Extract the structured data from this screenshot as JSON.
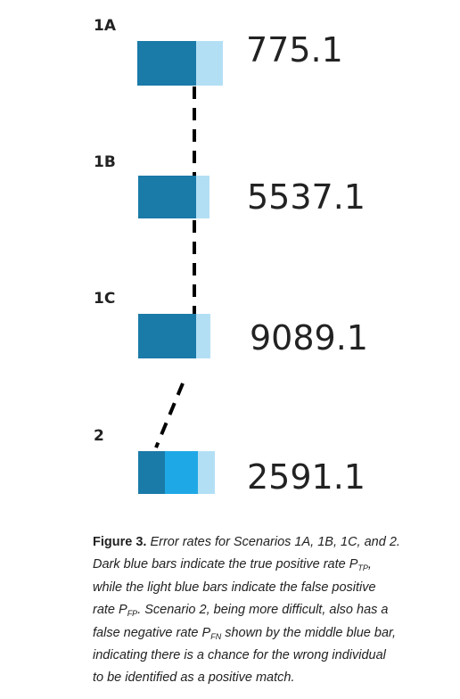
{
  "scenarios": [
    {
      "label": "1A",
      "value": "775.1"
    },
    {
      "label": "1B",
      "value": "5537.1"
    },
    {
      "label": "1C",
      "value": "9089.1"
    },
    {
      "label": "2",
      "value": "2591.1"
    }
  ],
  "caption": {
    "label": "Figure 3.",
    "lines": [
      [
        " Error rates for Scenarios 1A, 1B, 1C, and 2."
      ],
      [
        "Dark blue bars indicate the true positive rate P",
        {
          "text": "TP",
          "sub": true
        },
        ","
      ],
      [
        "while the light blue bars indicate the false positive"
      ],
      [
        "rate P",
        {
          "text": "FP",
          "sub": true
        },
        ". Scenario 2, being more difficult, also has a"
      ],
      [
        "false negative rate P",
        {
          "text": "FN",
          "sub": true
        },
        " shown by the middle blue bar,"
      ],
      [
        "indicating there is a chance for the wrong individual"
      ],
      [
        "to be identified as a positive match."
      ]
    ]
  }
}
